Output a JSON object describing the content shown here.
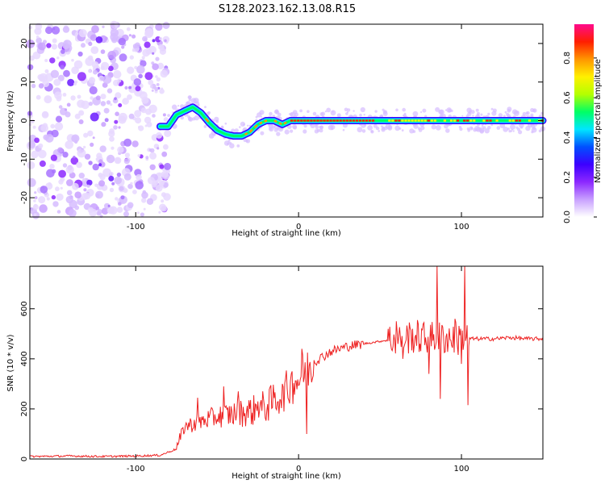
{
  "figure": {
    "title": "S128.2023.162.13.08.R15"
  },
  "chart_data": [
    {
      "type": "heatmap",
      "xlabel": "Height of straight line (km)",
      "ylabel": "Frequency (Hz)",
      "xlim": [
        -165,
        150
      ],
      "ylim": [
        -25,
        25
      ],
      "xticks": [
        -100,
        0,
        100
      ],
      "yticks": [
        -20,
        -10,
        0,
        10,
        20
      ],
      "colorbar": {
        "label": "Normalized spectral amplitude",
        "range": [
          0,
          0.97
        ],
        "ticks": [
          0.0,
          0.2,
          0.4,
          0.6,
          0.8
        ],
        "colormap": [
          "#ffffff",
          "#c8a0ff",
          "#8c28ff",
          "#3c00ff",
          "#0050ff",
          "#00e6ff",
          "#00ff64",
          "#b4ff00",
          "#fff000",
          "#ff9600",
          "#ff1e00",
          "#ff0a8c"
        ]
      },
      "ridge_frequency": {
        "x": [
          -85,
          -80,
          -75,
          -70,
          -65,
          -60,
          -55,
          -50,
          -45,
          -40,
          -35,
          -30,
          -25,
          -20,
          -15,
          -10,
          -5,
          0,
          50,
          100,
          150
        ],
        "y": [
          -1.5,
          -1.5,
          1.5,
          2.5,
          3.5,
          2.0,
          -0.5,
          -2.5,
          -3.5,
          -4.0,
          -4.0,
          -3.0,
          -1.0,
          0.0,
          0.0,
          -1.0,
          0.0,
          0.0,
          0.0,
          0.0,
          0.0
        ]
      },
      "noise_region_x": [
        -165,
        -80
      ]
    },
    {
      "type": "line",
      "xlabel": "Height of straight line (km)",
      "ylabel": "SNR (10 * v/v)",
      "xlim": [
        -165,
        150
      ],
      "ylim": [
        0,
        770
      ],
      "xticks": [
        -100,
        0,
        100
      ],
      "yticks": [
        0,
        200,
        400,
        600
      ],
      "color": "#ee2222",
      "x": [
        -165,
        -140,
        -120,
        -100,
        -85,
        -75,
        -70,
        -60,
        -50,
        -40,
        -30,
        -20,
        -10,
        0,
        10,
        20,
        30,
        40,
        50,
        60,
        70,
        80,
        90,
        100,
        110,
        120,
        130,
        140,
        150
      ],
      "y": [
        10,
        12,
        10,
        12,
        15,
        40,
        130,
        150,
        170,
        180,
        190,
        210,
        260,
        320,
        390,
        430,
        450,
        460,
        470,
        480,
        490,
        480,
        485,
        480,
        480,
        480,
        485,
        480,
        480
      ],
      "spikes": [
        {
          "x": -62,
          "y": 245
        },
        {
          "x": -46,
          "y": 290
        },
        {
          "x": -37,
          "y": 270
        },
        {
          "x": -25,
          "y": 230
        },
        {
          "x": -10,
          "y": 300
        },
        {
          "x": -4,
          "y": 350
        },
        {
          "x": 2,
          "y": 440
        },
        {
          "x": 5,
          "y": 100
        },
        {
          "x": 60,
          "y": 550
        },
        {
          "x": 64,
          "y": 400
        },
        {
          "x": 70,
          "y": 520
        },
        {
          "x": 80,
          "y": 340
        },
        {
          "x": 85,
          "y": 770
        },
        {
          "x": 87,
          "y": 240
        },
        {
          "x": 96,
          "y": 560
        },
        {
          "x": 100,
          "y": 380
        },
        {
          "x": 102,
          "y": 770
        },
        {
          "x": 104,
          "y": 215
        }
      ]
    }
  ]
}
